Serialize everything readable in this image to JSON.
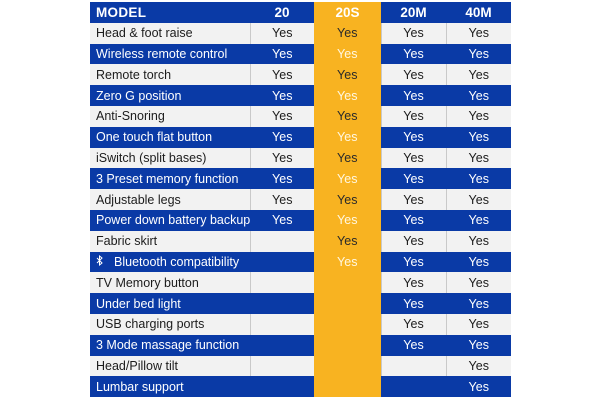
{
  "header": {
    "model_label": "MODEL",
    "columns": [
      "20",
      "20S",
      "20M",
      "40M"
    ]
  },
  "colors": {
    "blue": "#0a3aa6",
    "highlight": "#f8b321",
    "light_row": "#f2f2f2"
  },
  "rows": [
    {
      "feature": "Head & foot raise",
      "values": [
        "Yes",
        "Yes",
        "Yes",
        "Yes"
      ]
    },
    {
      "feature": "Wireless remote control",
      "values": [
        "Yes",
        "Yes",
        "Yes",
        "Yes"
      ]
    },
    {
      "feature": "Remote torch",
      "values": [
        "Yes",
        "Yes",
        "Yes",
        "Yes"
      ]
    },
    {
      "feature": "Zero G position",
      "values": [
        "Yes",
        "Yes",
        "Yes",
        "Yes"
      ]
    },
    {
      "feature": "Anti-Snoring",
      "values": [
        "Yes",
        "Yes",
        "Yes",
        "Yes"
      ]
    },
    {
      "feature": "One touch flat button",
      "values": [
        "Yes",
        "Yes",
        "Yes",
        "Yes"
      ]
    },
    {
      "feature": "iSwitch (split bases)",
      "values": [
        "Yes",
        "Yes",
        "Yes",
        "Yes"
      ]
    },
    {
      "feature": "3 Preset memory function",
      "values": [
        "Yes",
        "Yes",
        "Yes",
        "Yes"
      ]
    },
    {
      "feature": "Adjustable legs",
      "values": [
        "Yes",
        "Yes",
        "Yes",
        "Yes"
      ]
    },
    {
      "feature": "Power down battery backup",
      "values": [
        "Yes",
        "Yes",
        "Yes",
        "Yes"
      ]
    },
    {
      "feature": "Fabric skirt",
      "values": [
        "",
        "Yes",
        "Yes",
        "Yes"
      ]
    },
    {
      "feature": "Bluetooth compatibility",
      "icon": "bluetooth-icon",
      "values": [
        "",
        "Yes",
        "Yes",
        "Yes"
      ]
    },
    {
      "feature": "TV Memory button",
      "values": [
        "",
        "",
        "Yes",
        "Yes"
      ]
    },
    {
      "feature": "Under bed light",
      "values": [
        "",
        "",
        "Yes",
        "Yes"
      ]
    },
    {
      "feature": "USB charging ports",
      "values": [
        "",
        "",
        "Yes",
        "Yes"
      ]
    },
    {
      "feature": "3 Mode massage function",
      "values": [
        "",
        "",
        "Yes",
        "Yes"
      ]
    },
    {
      "feature": "Head/Pillow tilt",
      "values": [
        "",
        "",
        "",
        "Yes"
      ]
    },
    {
      "feature": "Lumbar support",
      "values": [
        "",
        "",
        "",
        "Yes"
      ]
    }
  ]
}
